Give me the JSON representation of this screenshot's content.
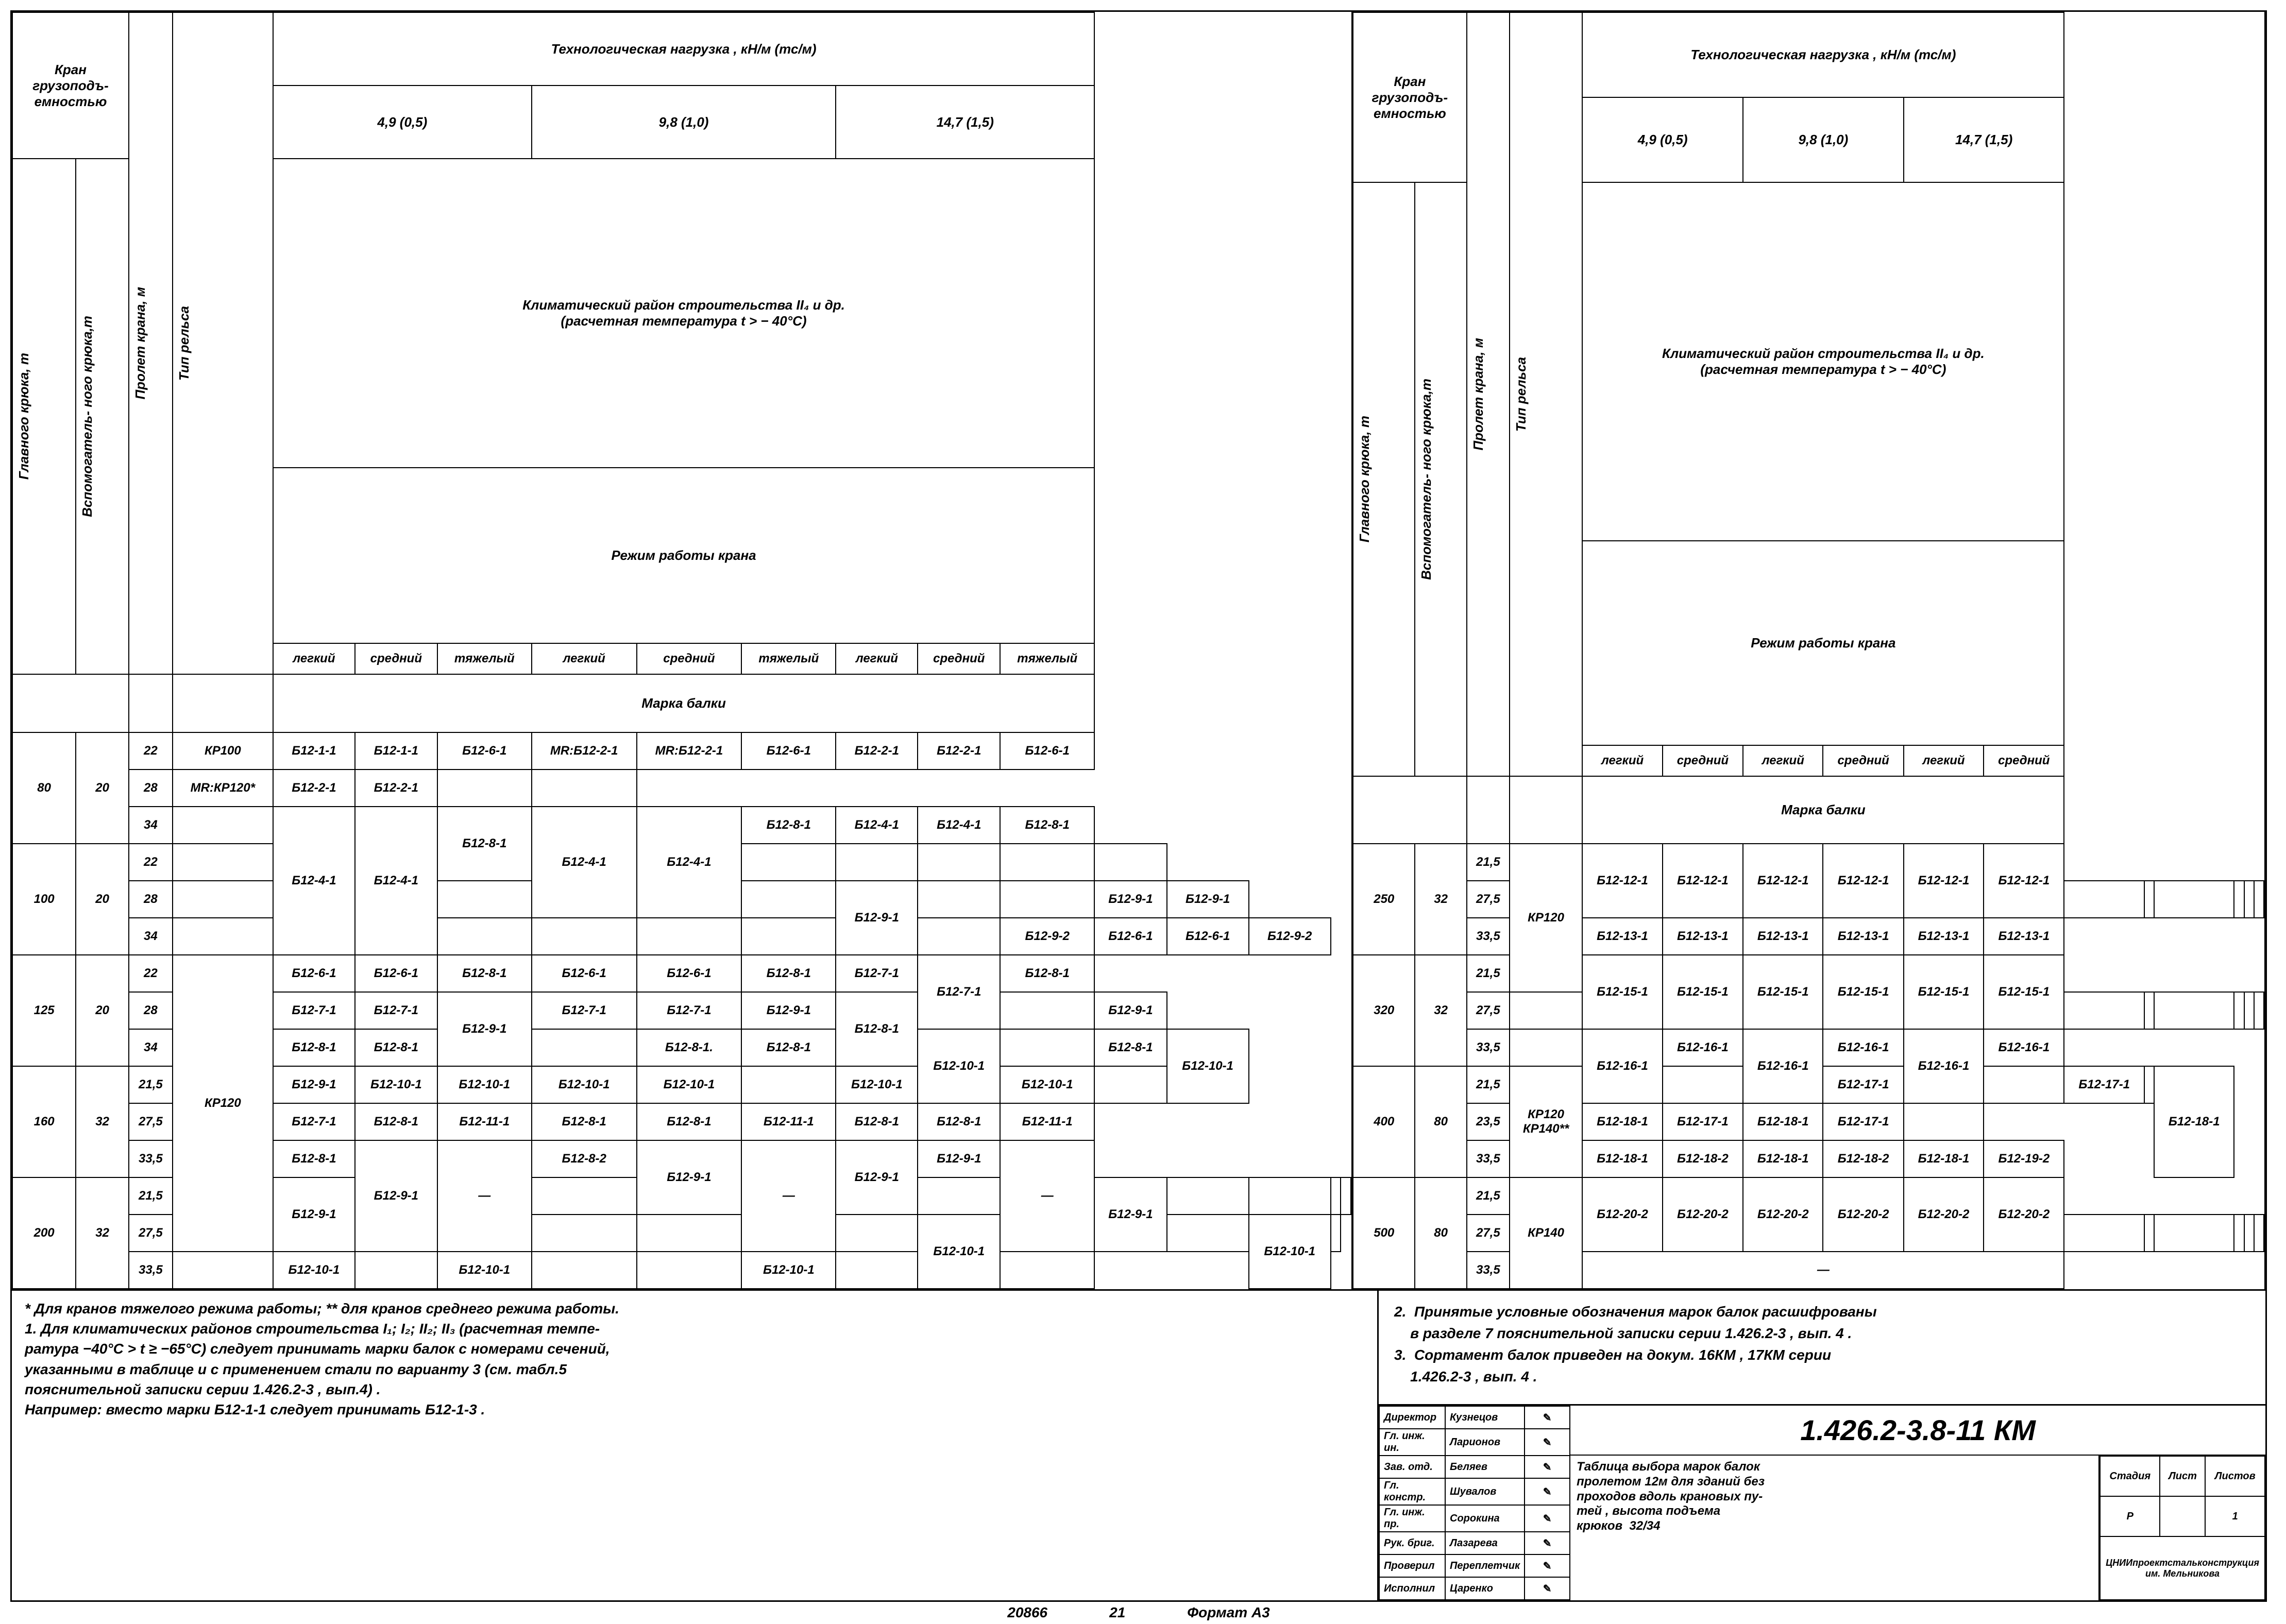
{
  "headers": {
    "crane_cap": "Кран\nгрузоподъ-\nемностью",
    "main_hook": "Главного\nкрюка, т",
    "aux_hook": "Вспомогатель-\nного крюка,т",
    "span": "Пролет крана, м",
    "rail": "Тип рельса",
    "tech_load": "Технологическая   нагрузка , кН/м (тс/м)",
    "load_49": "4,9 (0,5)",
    "load_98": "9,8 (1,0)",
    "load_147": "14,7 (1,5)",
    "climate": "Климатический   район   строительства II₄ и др.\n(расчетная   температура  t > − 40°C)",
    "regime": "Режим   работы   крана",
    "light": "легкий",
    "medium": "средний",
    "heavy": "тяжелый",
    "beam_mark": "Марка   балки"
  },
  "left_rows": [
    {
      "g": "80",
      "a": "20",
      "s": "22",
      "r": "КР100",
      "c": [
        "Б12-1-1",
        "Б12-1-1",
        "Б12-6-1",
        "MR:Б12-2-1",
        "MR:Б12-2-1",
        "Б12-6-1",
        "Б12-2-1",
        "Б12-2-1",
        "Б12-6-1"
      ]
    },
    {
      "g": "",
      "a": "",
      "s": "28",
      "r": "MR:КР120*",
      "c": [
        "Б12-2-1",
        "Б12-2-1",
        "MD",
        "",
        "",
        "MD",
        "MD",
        "MD",
        "MD"
      ]
    },
    {
      "g": "",
      "a": "",
      "s": "34",
      "r": "",
      "c": [
        "MR4:Б12-4-1",
        "MR4:Б12-4-1",
        "MR2:Б12-8-1",
        "MR3:Б12-4-1",
        "MR3:Б12-4-1",
        "Б12-8-1",
        "Б12-4-1",
        "Б12-4-1",
        "Б12-8-1"
      ]
    },
    {
      "g": "100",
      "a": "20",
      "s": "22",
      "r": "",
      "c": [
        "",
        "",
        "",
        "",
        "",
        "MD",
        "MD",
        "MD",
        "MD"
      ]
    },
    {
      "g": "",
      "a": "",
      "s": "28",
      "r": "",
      "c": [
        "",
        "",
        "MR2:Б12-9-1",
        "",
        "",
        "Б12-9-1",
        "MD",
        "MD",
        "Б12-9-1"
      ]
    },
    {
      "g": "",
      "a": "",
      "s": "34",
      "r": "",
      "c": [
        "",
        "",
        "",
        "",
        "",
        "Б12-9-2",
        "Б12-6-1",
        "Б12-6-1",
        "Б12-9-2"
      ]
    },
    {
      "g": "125",
      "a": "20",
      "s": "22",
      "r": "MR8:КР120",
      "c": [
        "Б12-6-1",
        "Б12-6-1",
        "Б12-8-1",
        "Б12-6-1",
        "Б12-6-1",
        "Б12-8-1",
        "Б12-7-1",
        "MR2:Б12-7-1",
        "Б12-8-1"
      ]
    },
    {
      "g": "",
      "a": "",
      "s": "28",
      "r": "",
      "c": [
        "Б12-7-1",
        "Б12-7-1",
        "MR2:Б12-9-1",
        "Б12-7-1",
        "Б12-7-1",
        "Б12-9-1",
        "MR2:Б12-8-1",
        "",
        "Б12-9-1"
      ]
    },
    {
      "g": "",
      "a": "",
      "s": "34",
      "r": "",
      "c": [
        "Б12-8-1",
        "Б12-8-1",
        "",
        "Б12-8-1.",
        "Б12-8-1",
        "MR2:Б12-10-1",
        "",
        "Б12-8-1",
        "MR2:Б12-10-1"
      ]
    },
    {
      "g": "160",
      "a": "32",
      "s": "21,5",
      "r": "",
      "c": [
        "Б12-9-1",
        "Б12-10-1",
        "Б12-10-1",
        "Б12-10-1",
        "Б12-10-1",
        "",
        "Б12-10-1",
        "Б12-10-1",
        ""
      ]
    },
    {
      "g": "",
      "a": "",
      "s": "27,5",
      "r": "",
      "c": [
        "Б12-7-1",
        "Б12-8-1",
        "Б12-11-1",
        "Б12-8-1",
        "Б12-8-1",
        "Б12-11-1",
        "Б12-8-1",
        "Б12-8-1",
        "Б12-11-1"
      ]
    },
    {
      "g": "",
      "a": "",
      "s": "33,5",
      "r": "",
      "c": [
        "Б12-8-1",
        "MR3:Б12-9-1",
        "MR3:—",
        "Б12-8-2",
        "MR2:Б12-9-1",
        "MR3:—",
        "MR2:Б12-9-1",
        "Б12-9-1",
        "MR3:—"
      ]
    },
    {
      "g": "200",
      "a": "32",
      "s": "21,5",
      "r": "",
      "c": [
        "MR2:Б12-9-1",
        "",
        "",
        "MR2:Б12-9-1",
        "",
        "",
        "",
        "MD",
        ""
      ]
    },
    {
      "g": "",
      "a": "",
      "s": "27,5",
      "r": "",
      "c": [
        "",
        "MD",
        "",
        "",
        "MR2:Б12-10-1",
        "",
        "MD",
        "MR2:Б12-10-1",
        ""
      ]
    },
    {
      "g": "",
      "a": "",
      "s": "33,5",
      "r": "",
      "c": [
        "MU",
        "Б12-10-1",
        "",
        "Б12-10-1",
        "",
        "",
        "Б12-10-1",
        "",
        ""
      ]
    }
  ],
  "right_rows": [
    {
      "g": "250",
      "a": "32",
      "s": "21,5",
      "r": "MR4:КР120",
      "c": [
        "MR2:Б12-12-1",
        "MR2:Б12-12-1",
        "MR2:Б12-12-1",
        "MR2:Б12-12-1",
        "MR2:Б12-12-1",
        "MR2:Б12-12-1"
      ]
    },
    {
      "g": "",
      "a": "",
      "s": "27,5",
      "r": "",
      "c": [
        "",
        "",
        "",
        "",
        "",
        ""
      ]
    },
    {
      "g": "",
      "a": "",
      "s": "33,5",
      "r": "",
      "c": [
        "Б12-13-1",
        "Б12-13-1",
        "Б12-13-1",
        "Б12-13-1",
        "Б12-13-1",
        "Б12-13-1"
      ]
    },
    {
      "g": "320",
      "a": "32",
      "s": "21,5",
      "r": "",
      "c": [
        "MR2:Б12-15-1",
        "MR2:Б12-15-1",
        "MR2:Б12-15-1",
        "MR2:Б12-15-1",
        "MR2:Б12-15-1",
        "MR2:Б12-15-1"
      ]
    },
    {
      "g": "",
      "a": "",
      "s": "27,5",
      "r": "",
      "c": [
        "",
        "",
        "",
        "",
        "",
        ""
      ]
    },
    {
      "g": "",
      "a": "",
      "s": "33,5",
      "r": "",
      "c": [
        "MR2:Б12-16-1",
        "Б12-16-1",
        "MR2:Б12-16-1",
        "Б12-16-1",
        "MR2:Б12-16-1",
        "Б12-16-1"
      ]
    },
    {
      "g": "400",
      "a": "80",
      "s": "21,5",
      "r": "MR3:КР120\nКР140**",
      "c": [
        "",
        "Б12-17-1",
        "",
        "Б12-17-1",
        "",
        "MR3:Б12-18-1"
      ]
    },
    {
      "g": "",
      "a": "",
      "s": "23,5",
      "r": "",
      "c": [
        "MD",
        "Б12-18-1",
        "Б12-17-1",
        "Б12-18-1",
        "Б12-17-1",
        ""
      ]
    },
    {
      "g": "",
      "a": "",
      "s": "33,5",
      "r": "",
      "c": [
        "Б12-18-1",
        "Б12-18-2",
        "Б12-18-1",
        "Б12-18-2",
        "Б12-18-1",
        "Б12-19-2"
      ]
    },
    {
      "g": "500",
      "a": "80",
      "s": "21,5",
      "r": "MR3:КР140",
      "c": [
        "MR2:Б12-20-2",
        "MR2:Б12-20-2",
        "MR2:Б12-20-2",
        "MR2:Б12-20-2",
        "MR2:Б12-20-2",
        "MR2:Б12-20-2"
      ]
    },
    {
      "g": "",
      "a": "",
      "s": "27,5",
      "r": "",
      "c": [
        "",
        "",
        "",
        "",
        "",
        ""
      ]
    },
    {
      "g": "",
      "a": "",
      "s": "33,5",
      "r": "",
      "c": [
        "C6:—"
      ]
    }
  ],
  "note1": "* Для кранов тяжелого режима работы; ** для кранов среднего режима работы.\n1. Для климатических районов строительства I₁; I₂; II₂; II₃ (расчетная темпе-\nратура −40°C > t ≥ −65°C) следует принимать марки балок с номерами сечений,\nуказанными в таблице и с применением стали по варианту 3 (см. табл.5\nпояснительной записки серии 1.426.2-3 , вып.4) .\nНапример: вместо марки Б12-1-1 следует принимать Б12-1-3 .",
  "note2": "2.  Принятые условные обозначения марок балок расшифрованы\n    в разделе 7 пояснительной записки серии 1.426.2-3 , вып. 4 .\n3.  Сортамент балок приведен на докум. 16КМ , 17КМ серии\n    1.426.2-3 , вып. 4 .",
  "sigs": [
    [
      "Директор",
      "Кузнецов"
    ],
    [
      "Гл. инж. ин.",
      "Ларионов"
    ],
    [
      "Зав. отд.",
      "Беляев"
    ],
    [
      "Гл. констр.",
      "Шувалов"
    ],
    [
      "Гл. инж. пр.",
      "Сорокина"
    ],
    [
      "Рук. бриг.",
      "Лазарева"
    ],
    [
      "Проверил",
      "Переплетчик"
    ],
    [
      "Исполнил",
      "Царенко"
    ]
  ],
  "dwg_no": "1.426.2-3.8-11 КМ",
  "dwg_desc": "Таблица выбора марок балок\nпролетом 12м для зданий без\nпроходов вдоль крановых пу-\nтей , высота подъема\nкрюков  32/34",
  "meta": {
    "stage": "Стадия",
    "sheet": "Лист",
    "sheets": "Листов",
    "stage_v": "Р",
    "sheet_v": "",
    "sheets_v": "1",
    "org": "ЦНИИпроектстальконструкция\nим. Мельникова"
  },
  "footer": {
    "a": "20866",
    "b": "21",
    "c": "Формат А3"
  }
}
